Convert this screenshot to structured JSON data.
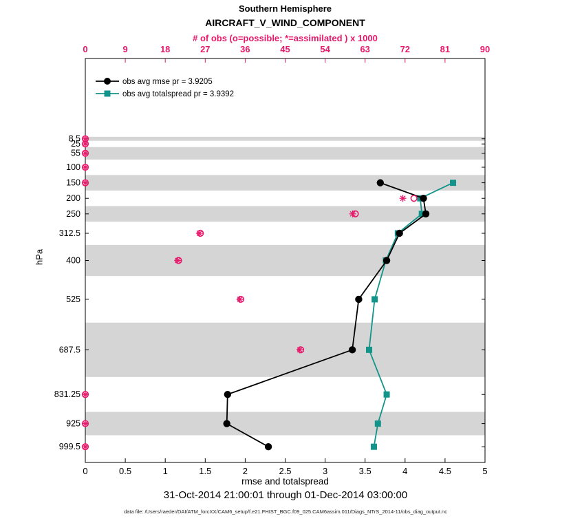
{
  "colors": {
    "obs": "#e8186b",
    "rmse": "#000000",
    "spread": "#12948b",
    "band": "#d5d5d5",
    "axis": "#000000"
  },
  "chart_data": {
    "type": "line",
    "title": "Southern Hemisphere",
    "subtitle": "AIRCRAFT_V_WIND_COMPONENT",
    "caption": "31-Oct-2014 21:00:01 through 01-Dec-2014 03:00:00",
    "datafile": "data file: /Users/raeder/DAI/ATM_forcXX/CAM6_setup/f.e21.FHIST_BGC.f09_025.CAM6assim.011/Diags_NTrS_2014-11/obs_diag_output.nc",
    "bottom_axis": {
      "label": "rmse and totalspread",
      "range": [
        0,
        5
      ],
      "ticks": [
        0,
        0.5,
        1,
        1.5,
        2,
        2.5,
        3,
        3.5,
        4,
        4.5,
        5
      ],
      "tick_labels": [
        "0",
        "0.5",
        "1",
        "1.5",
        "2",
        "2.5",
        "3",
        "3.5",
        "4",
        "4.5",
        "5"
      ]
    },
    "top_axis": {
      "label": "# of obs (o=possible; *=assimilated ) x 1000",
      "range": [
        0,
        90
      ],
      "ticks": [
        0,
        9,
        18,
        27,
        36,
        45,
        54,
        63,
        72,
        81,
        90
      ],
      "tick_labels": [
        "0",
        "9",
        "18",
        "27",
        "36",
        "45",
        "54",
        "63",
        "72",
        "81",
        "90"
      ]
    },
    "y_axis": {
      "label": "hPa",
      "display_range": [
        -250,
        1050
      ],
      "reversed": true,
      "ticks": [
        8.5,
        25,
        55,
        100,
        150,
        200,
        250,
        312.5,
        400,
        525,
        687.5,
        831.25,
        925,
        999.5
      ],
      "tick_labels": [
        "8.5",
        "25",
        "55",
        "100",
        "150",
        "200",
        "250",
        "312.5",
        "400",
        "525",
        "687.5",
        "831.25",
        "925",
        "999.5"
      ]
    },
    "shaded_layers": [
      [
        2,
        15
      ],
      [
        35,
        75
      ],
      [
        125,
        175
      ],
      [
        225,
        275
      ],
      [
        350,
        450
      ],
      [
        600,
        775
      ],
      [
        887.5,
        962.5
      ]
    ],
    "series_levels": [
      150,
      200,
      250,
      312.5,
      400,
      525,
      687.5,
      831.25,
      925,
      999.5
    ],
    "series": [
      {
        "name": "obs avg rmse pr = 3.9205",
        "marker": "circle",
        "color": "#000000",
        "values": [
          3.69,
          4.23,
          4.26,
          3.93,
          3.77,
          3.42,
          3.34,
          1.78,
          1.77,
          2.29
        ]
      },
      {
        "name": "obs avg totalspread pr = 3.9392",
        "marker": "square",
        "color": "#12948b",
        "values": [
          4.6,
          4.19,
          4.21,
          3.91,
          3.76,
          3.62,
          3.55,
          3.77,
          3.66,
          3.61
        ]
      }
    ],
    "obs_counts": {
      "levels": [
        8.5,
        25,
        55,
        100,
        150,
        200,
        250,
        312.5,
        400,
        525,
        687.5,
        831.25,
        925,
        999.5
      ],
      "possible": [
        0,
        0,
        0,
        0,
        0,
        74.0,
        60.8,
        25.9,
        21.0,
        35.0,
        48.5,
        0,
        0,
        0
      ],
      "assimilated": [
        0,
        0,
        0,
        0,
        0,
        71.5,
        60.2,
        25.7,
        20.8,
        34.8,
        48.3,
        0,
        0,
        0
      ]
    }
  }
}
